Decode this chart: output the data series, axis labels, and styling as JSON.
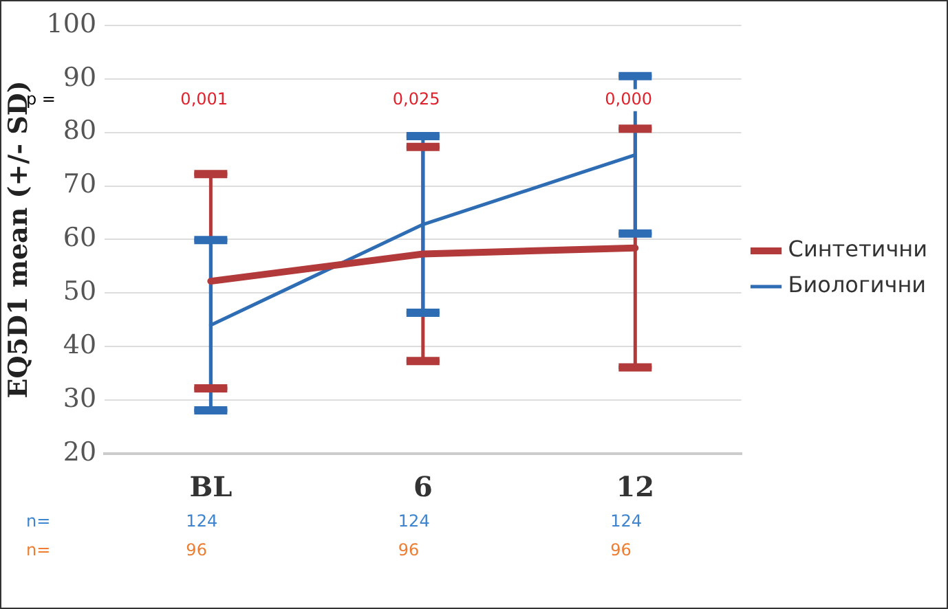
{
  "chart_data": {
    "type": "line",
    "ylabel": "EQ5D1 mean (+/- SD)",
    "categories": [
      "BL",
      "6",
      "12"
    ],
    "series": [
      {
        "name": "Синтетични",
        "color": "#b33a3a",
        "values": [
          52.2,
          57.3,
          58.4
        ],
        "errors": [
          20,
          20,
          22.3
        ]
      },
      {
        "name": "Биологични",
        "color": "#2e6db4",
        "values": [
          44.0,
          62.8,
          75.8
        ],
        "errors": [
          15.9,
          16.5,
          14.7
        ]
      }
    ],
    "ylim": [
      20,
      100
    ],
    "yticks": [
      20,
      30,
      40,
      50,
      60,
      70,
      80,
      90,
      100
    ],
    "grid": "y",
    "legend": "right",
    "marker": "none",
    "line_style": "solid",
    "annotations": [
      "p =",
      "0,001",
      "0,025",
      "0,000",
      "n=",
      "124",
      "124",
      "124",
      "n=",
      "96",
      "96",
      "96"
    ]
  }
}
